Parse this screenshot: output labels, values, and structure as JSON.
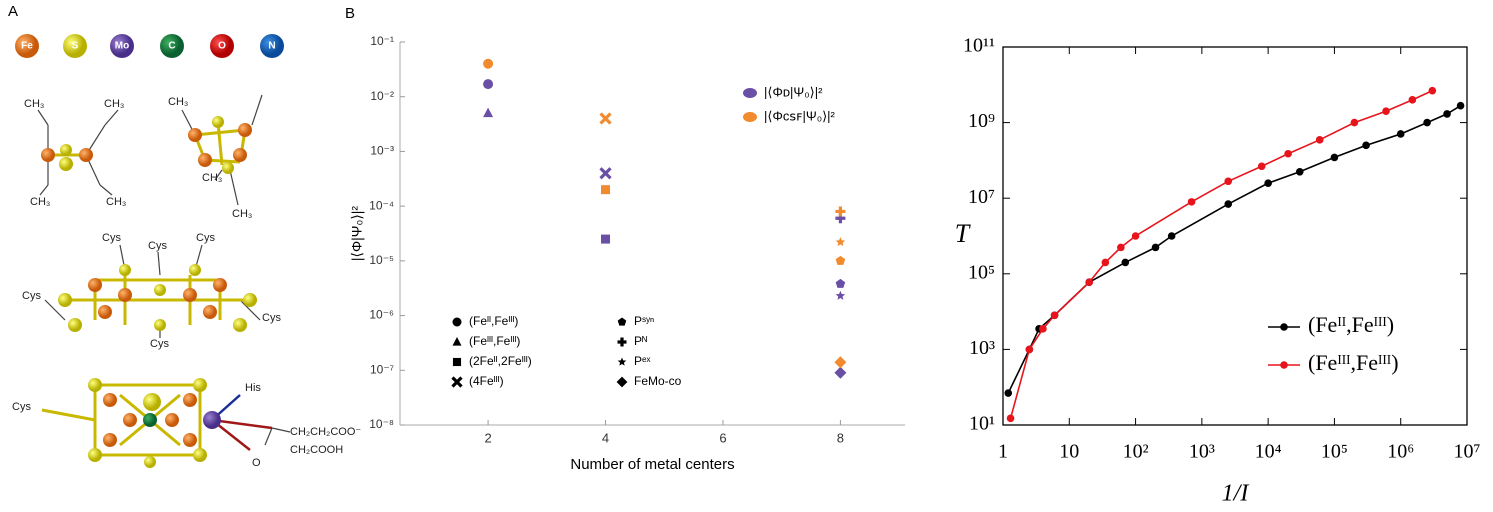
{
  "panel_a": {
    "label": "A",
    "elements": [
      "Fe",
      "S",
      "Mo",
      "C",
      "O",
      "N"
    ],
    "molecules": [
      {
        "labels": [
          "CH₃",
          "CH₃",
          "CH₃",
          "CH₃"
        ]
      },
      {
        "labels": [
          "CH₃",
          "CH₃",
          "CH₃"
        ]
      },
      {
        "labels": [
          "Cys",
          "Cys",
          "Cys",
          "Cys",
          "Cys",
          "Cys"
        ]
      },
      {
        "labels": [
          "Cys",
          "His",
          "CH₂CH₂COO⁻",
          "CH₂COOH",
          "O"
        ]
      }
    ]
  },
  "chart_data": [
    {
      "type": "scatter",
      "panel_label": "B",
      "log_y": true,
      "xlim": [
        0.5,
        9.1
      ],
      "ylim": [
        1e-08,
        0.1
      ],
      "xticks": [
        2,
        4,
        6,
        8
      ],
      "yticks": [
        {
          "value": 1e-08,
          "label": "10⁻⁸"
        },
        {
          "value": 1e-07,
          "label": "10⁻⁷"
        },
        {
          "value": 1e-06,
          "label": "10⁻⁶"
        },
        {
          "value": 1e-05,
          "label": "10⁻⁵"
        },
        {
          "value": 0.0001,
          "label": "10⁻⁴"
        },
        {
          "value": 0.001,
          "label": "10⁻³"
        },
        {
          "value": 0.01,
          "label": "10⁻²"
        },
        {
          "value": 0.1,
          "label": "10⁻¹"
        }
      ],
      "x_label": "Number of metal centers",
      "y_label": "|⟨Φ|Ψ₀⟩|²",
      "legend": "upper right",
      "series": [
        {
          "name": "|⟨Φᴅ|Ψ₀⟩|²",
          "color": "#6a4fa6",
          "x": [
            2,
            2,
            4,
            4,
            8,
            8,
            8,
            8
          ],
          "values": [
            0.017,
            0.005,
            2.5e-05,
            0.0004,
            6e-05,
            3.8e-06,
            2.3e-06,
            9e-08
          ],
          "markers": [
            "circle",
            "triangle",
            "square",
            "cross",
            "plus",
            "pentagon",
            "star",
            "diamond"
          ]
        },
        {
          "name": "|⟨Φᴄꜱꜰ|Ψ₀⟩|²",
          "color": "#f28a2e",
          "x": [
            2,
            4,
            4,
            8,
            8,
            8,
            8
          ],
          "values": [
            0.04,
            0.0002,
            0.004,
            8e-05,
            2.2e-05,
            1e-05,
            1.4e-07
          ],
          "markers": [
            "circle",
            "square",
            "cross",
            "plus",
            "star",
            "pentagon",
            "diamond"
          ]
        }
      ],
      "marker_legend": [
        {
          "label": "(Feᴵᴵ,Feᴵᴵᴵ)",
          "marker": "circle"
        },
        {
          "label": "(Feᴵᴵᴵ,Feᴵᴵᴵ)",
          "marker": "triangle"
        },
        {
          "label": "(2Feᴵᴵ,2Feᴵᴵᴵ)",
          "marker": "square"
        },
        {
          "label": "(4Feᴵᴵᴵ)",
          "marker": "cross"
        },
        {
          "label": "Pˢʸⁿ",
          "marker": "pentagon"
        },
        {
          "label": "Pᴺ",
          "marker": "plus"
        },
        {
          "label": "Pᵉˣ",
          "marker": "star"
        },
        {
          "label": "FeMo-co",
          "marker": "diamond"
        }
      ]
    },
    {
      "type": "line",
      "log_x": true,
      "log_y": true,
      "xlim": [
        1,
        10000000
      ],
      "ylim": [
        10,
        100000000000
      ],
      "xticks": [
        1,
        10,
        {
          "value": 100,
          "label": "10²"
        },
        {
          "value": 1000,
          "label": "10³"
        },
        {
          "value": 10000,
          "label": "10⁴"
        },
        {
          "value": 100000,
          "label": "10⁵"
        },
        {
          "value": 1000000,
          "label": "10⁶"
        },
        {
          "value": 10000000,
          "label": "10⁷"
        }
      ],
      "yticks": [
        {
          "value": 10,
          "label": "10¹"
        },
        {
          "value": 1000,
          "label": "10³"
        },
        {
          "value": 100000,
          "label": "10⁵"
        },
        {
          "value": 10000000,
          "label": "10⁷"
        },
        {
          "value": 1000000000,
          "label": "10⁹"
        },
        {
          "value": 100000000000,
          "label": "10¹¹"
        }
      ],
      "x_label": "1/I",
      "y_label": "T",
      "legend": "lower right",
      "series": [
        {
          "name": "(Feᴵᴵ,Feᴵᴵᴵ)",
          "color": "#000000",
          "x": [
            1.2,
            2.5,
            3.5,
            6,
            20,
            70,
            200,
            350,
            2500,
            10000,
            30000,
            100000,
            300000,
            1000000,
            2500000,
            5000000,
            8000000
          ],
          "values": [
            70,
            1000,
            3500,
            8000,
            60000,
            200000,
            500000,
            1000000,
            7000000,
            25000000,
            50000000,
            120000000,
            250000000,
            500000000,
            1000000000,
            1700000000,
            2800000000
          ]
        },
        {
          "name": "(Feᴵᴵᴵ,Feᴵᴵᴵ)",
          "color": "#e8141c",
          "x": [
            1.3,
            2.5,
            4,
            6,
            20,
            35,
            60,
            100,
            700,
            2500,
            8000,
            20000,
            60000,
            200000,
            600000,
            1500000,
            3000000
          ],
          "values": [
            15,
            1000,
            3500,
            8000,
            60000,
            200000,
            500000,
            1000000,
            8000000,
            28000000,
            70000000,
            150000000,
            350000000,
            1000000000,
            2000000000,
            4000000000,
            7000000000
          ]
        }
      ]
    }
  ]
}
